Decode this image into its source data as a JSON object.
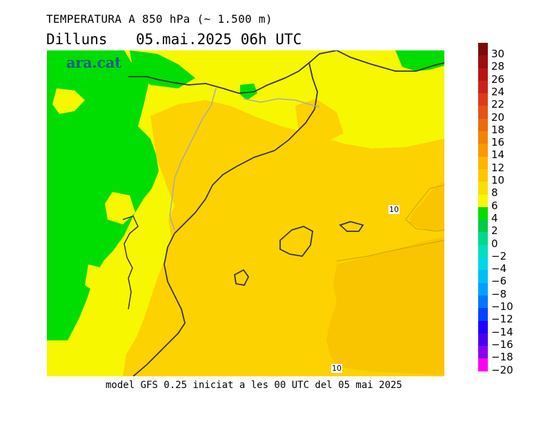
{
  "header": {
    "title": "TEMPERATURA A 850 hPa (~ 1.500 m)",
    "day": "Dilluns",
    "datetime": "05.mai.2025 06h UTC"
  },
  "map": {
    "logo": "ara.cat",
    "contour_labels": [
      "10",
      "10"
    ],
    "colors": {
      "green": "#00dd00",
      "yellow": "#f7f700",
      "light_orange": "#f8e800",
      "orange": "#fcd200",
      "dark_orange": "#f9c400",
      "borders": "#333333",
      "frontier": "#aaaaaa"
    }
  },
  "legend": {
    "labels": [
      "30",
      "28",
      "26",
      "24",
      "22",
      "20",
      "18",
      "16",
      "14",
      "12",
      "10",
      "8",
      "6",
      "4",
      "2",
      "0",
      "−2",
      "−4",
      "−6",
      "−8",
      "−10",
      "−12",
      "−14",
      "−16",
      "−18",
      "−20"
    ],
    "colors": [
      "#7b0b0b",
      "#9a0e0e",
      "#b81414",
      "#cc2020",
      "#dd3a1a",
      "#e55318",
      "#ed6a10",
      "#f28405",
      "#f89a00",
      "#fcb500",
      "#fbc800",
      "#f8e000",
      "#f7f700",
      "#00dd00",
      "#00cc44",
      "#00d98a",
      "#00dfc0",
      "#00d8e6",
      "#00bff5",
      "#00a0ff",
      "#0077ff",
      "#0044ff",
      "#2200ff",
      "#4a00f0",
      "#8a00f0",
      "#ff00f0"
    ]
  },
  "footer": {
    "text": "model GFS 0.25 iniciat a les 00 UTC del 05 mai 2025"
  }
}
